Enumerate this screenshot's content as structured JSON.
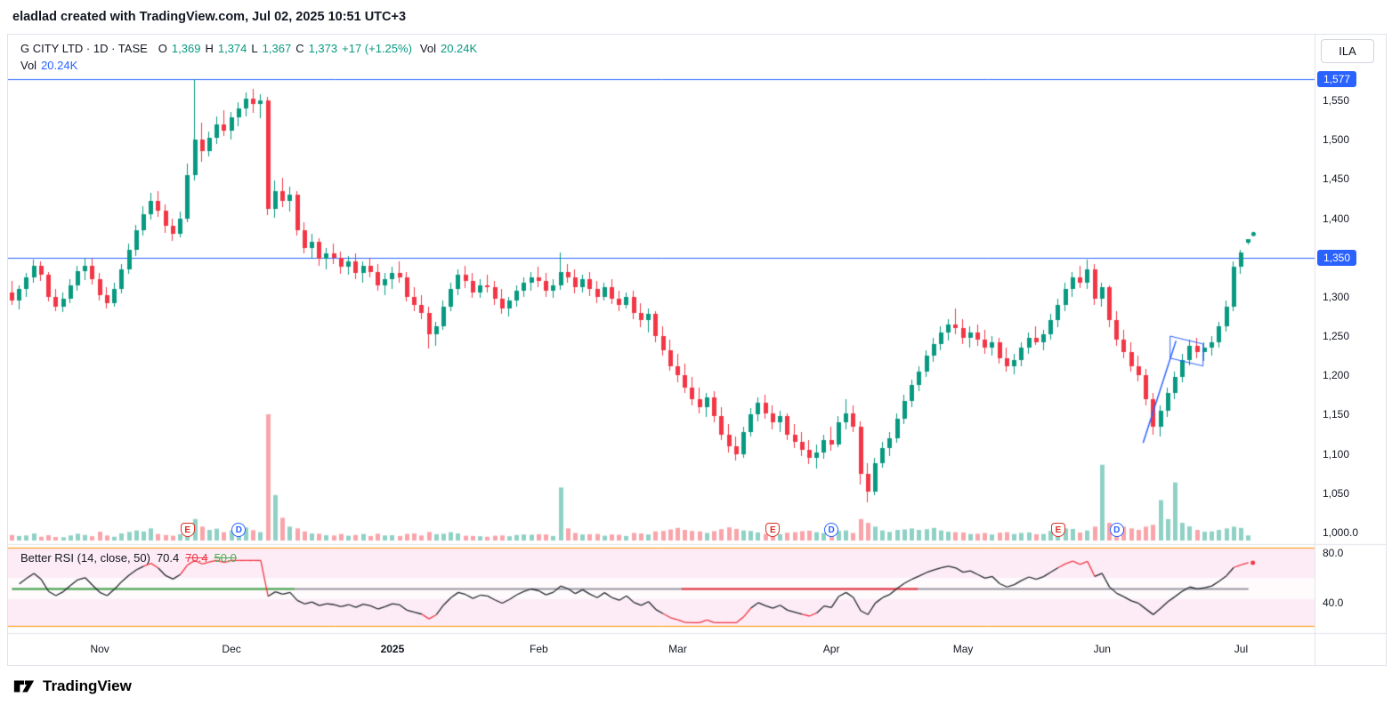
{
  "topbar": {
    "attribution": "eladlad created with TradingView.com, Jul 02, 2025 10:51 UTC+3"
  },
  "header": {
    "symbol_line": "G CITY LTD · 1D · TASE",
    "o_label": "O",
    "o": "1,369",
    "h_label": "H",
    "h": "1,374",
    "l_label": "L",
    "l": "1,367",
    "c_label": "C",
    "c": "1,373",
    "change": "+17 (+1.25%)",
    "vol_label": "Vol",
    "vol": "20.24K",
    "vol_row_label": "Vol",
    "vol_row_value": "20.24K"
  },
  "price_axis": {
    "unit_button": "ILA",
    "ticks": [
      {
        "label": "1,550",
        "p": 1550
      },
      {
        "label": "1,500",
        "p": 1500
      },
      {
        "label": "1,450",
        "p": 1450
      },
      {
        "label": "1,400",
        "p": 1400
      },
      {
        "label": "1,300",
        "p": 1300
      },
      {
        "label": "1,250",
        "p": 1250
      },
      {
        "label": "1,200",
        "p": 1200
      },
      {
        "label": "1,150",
        "p": 1150
      },
      {
        "label": "1,100",
        "p": 1100
      },
      {
        "label": "1,050",
        "p": 1050
      },
      {
        "label": "1,000.0",
        "p": 1000
      }
    ],
    "badges": [
      {
        "label": "1,577",
        "p": 1577
      },
      {
        "label": "1,350",
        "p": 1350
      }
    ]
  },
  "rsi_panel": {
    "legend": "Better RSI (14, close, 50)",
    "values": [
      {
        "text": "70.4",
        "color": "#131722",
        "strike": false
      },
      {
        "text": "70.4",
        "color": "#f23645",
        "strike": true
      },
      {
        "text": "50.0",
        "color": "#4caf50",
        "strike": true
      }
    ],
    "axis": [
      {
        "label": "80.0",
        "r": 80
      },
      {
        "label": "40.0",
        "r": 40
      }
    ]
  },
  "time_axis": [
    {
      "label": "Nov",
      "i": 12
    },
    {
      "label": "Dec",
      "i": 30
    },
    {
      "label": "2025",
      "i": 52,
      "bold": true
    },
    {
      "label": "Feb",
      "i": 72
    },
    {
      "label": "Mar",
      "i": 91
    },
    {
      "label": "Apr",
      "i": 112
    },
    {
      "label": "May",
      "i": 130
    },
    {
      "label": "Jun",
      "i": 149
    },
    {
      "label": "Jul",
      "i": 168
    }
  ],
  "event_badges": [
    {
      "type": "E",
      "i": 24
    },
    {
      "type": "D",
      "i": 31
    },
    {
      "type": "E",
      "i": 104
    },
    {
      "type": "D",
      "i": 112
    },
    {
      "type": "E",
      "i": 143
    },
    {
      "type": "D",
      "i": 151
    }
  ],
  "footer": {
    "brand": "TradingView"
  },
  "colors": {
    "up": "#089981",
    "down": "#f23645",
    "line_blue": "#2962ff",
    "rsi_red": "#f23645",
    "rsi_green": "#4caf50",
    "neutral_gray": "#9598a1",
    "orange": "#ff9100",
    "panel_pink": "#fdecf6"
  },
  "chart_data": {
    "type": "candlestick",
    "title": "G CITY LTD · 1D · TASE",
    "symbol": "G CITY LTD",
    "exchange": "TASE",
    "interval": "1D",
    "last_bar": {
      "open": 1369,
      "high": 1374,
      "low": 1367,
      "close": 1373,
      "change": 17,
      "change_pct": 1.25,
      "volume_k": 20.24
    },
    "visible_price_range": [
      1000,
      1590
    ],
    "price_lines": [
      1577,
      1350
    ],
    "indicator": "Better RSI (14, close, 50)",
    "rsi_legend_values": [
      70.4,
      70.4,
      50.0
    ],
    "volume_unit": "K",
    "candles": [
      [
        1305,
        1320,
        1290,
        1295,
        22
      ],
      [
        1295,
        1315,
        1285,
        1310,
        18
      ],
      [
        1310,
        1330,
        1300,
        1325,
        20
      ],
      [
        1325,
        1347,
        1318,
        1340,
        28
      ],
      [
        1340,
        1345,
        1320,
        1328,
        15
      ],
      [
        1328,
        1332,
        1295,
        1300,
        21
      ],
      [
        1300,
        1310,
        1282,
        1288,
        14
      ],
      [
        1288,
        1305,
        1280,
        1298,
        13
      ],
      [
        1298,
        1322,
        1292,
        1315,
        20
      ],
      [
        1315,
        1340,
        1308,
        1333,
        27
      ],
      [
        1333,
        1350,
        1322,
        1340,
        22
      ],
      [
        1340,
        1348,
        1315,
        1322,
        17
      ],
      [
        1322,
        1330,
        1295,
        1302,
        35
      ],
      [
        1302,
        1312,
        1285,
        1292,
        20
      ],
      [
        1292,
        1318,
        1288,
        1310,
        15
      ],
      [
        1310,
        1342,
        1305,
        1335,
        28
      ],
      [
        1335,
        1368,
        1330,
        1360,
        34
      ],
      [
        1360,
        1392,
        1352,
        1385,
        40
      ],
      [
        1385,
        1415,
        1378,
        1405,
        36
      ],
      [
        1405,
        1432,
        1398,
        1422,
        48
      ],
      [
        1422,
        1435,
        1402,
        1410,
        26
      ],
      [
        1410,
        1418,
        1382,
        1390,
        22
      ],
      [
        1390,
        1400,
        1372,
        1380,
        19
      ],
      [
        1380,
        1408,
        1375,
        1400,
        25
      ],
      [
        1400,
        1470,
        1395,
        1455,
        62
      ],
      [
        1455,
        1577,
        1448,
        1500,
        85
      ],
      [
        1500,
        1522,
        1472,
        1485,
        55
      ],
      [
        1485,
        1510,
        1478,
        1502,
        42
      ],
      [
        1502,
        1530,
        1495,
        1520,
        47
      ],
      [
        1520,
        1538,
        1505,
        1512,
        33
      ],
      [
        1512,
        1535,
        1500,
        1528,
        40
      ],
      [
        1528,
        1548,
        1518,
        1540,
        46
      ],
      [
        1540,
        1560,
        1530,
        1552,
        52
      ],
      [
        1552,
        1565,
        1535,
        1545,
        41
      ],
      [
        1545,
        1558,
        1528,
        1550,
        33
      ],
      [
        1550,
        1555,
        1405,
        1412,
        500
      ],
      [
        1412,
        1448,
        1400,
        1435,
        180
      ],
      [
        1435,
        1452,
        1415,
        1422,
        90
      ],
      [
        1422,
        1440,
        1408,
        1430,
        55
      ],
      [
        1430,
        1435,
        1378,
        1385,
        48
      ],
      [
        1385,
        1395,
        1355,
        1362,
        36
      ],
      [
        1362,
        1380,
        1348,
        1370,
        28
      ],
      [
        1370,
        1375,
        1340,
        1348,
        27
      ],
      [
        1348,
        1362,
        1335,
        1355,
        21
      ],
      [
        1355,
        1368,
        1342,
        1350,
        20
      ],
      [
        1350,
        1358,
        1330,
        1338,
        26
      ],
      [
        1338,
        1352,
        1328,
        1345,
        19
      ],
      [
        1345,
        1355,
        1322,
        1330,
        22
      ],
      [
        1330,
        1345,
        1318,
        1340,
        26
      ],
      [
        1340,
        1350,
        1325,
        1332,
        18
      ],
      [
        1332,
        1342,
        1308,
        1315,
        27
      ],
      [
        1315,
        1330,
        1302,
        1322,
        20
      ],
      [
        1322,
        1338,
        1310,
        1330,
        21
      ],
      [
        1330,
        1345,
        1318,
        1325,
        18
      ],
      [
        1325,
        1332,
        1295,
        1300,
        26
      ],
      [
        1300,
        1312,
        1282,
        1290,
        28
      ],
      [
        1290,
        1302,
        1272,
        1280,
        20
      ],
      [
        1280,
        1288,
        1235,
        1252,
        34
      ],
      [
        1252,
        1268,
        1238,
        1262,
        25
      ],
      [
        1262,
        1295,
        1258,
        1288,
        27
      ],
      [
        1288,
        1318,
        1282,
        1310,
        33
      ],
      [
        1310,
        1335,
        1302,
        1328,
        28
      ],
      [
        1328,
        1340,
        1312,
        1320,
        19
      ],
      [
        1320,
        1330,
        1298,
        1305,
        18
      ],
      [
        1305,
        1322,
        1298,
        1315,
        17
      ],
      [
        1315,
        1328,
        1305,
        1312,
        15
      ],
      [
        1312,
        1320,
        1290,
        1298,
        19
      ],
      [
        1298,
        1310,
        1278,
        1285,
        20
      ],
      [
        1285,
        1300,
        1275,
        1295,
        17
      ],
      [
        1295,
        1315,
        1288,
        1308,
        22
      ],
      [
        1308,
        1325,
        1300,
        1318,
        24
      ],
      [
        1318,
        1332,
        1308,
        1325,
        23
      ],
      [
        1325,
        1338,
        1312,
        1320,
        25
      ],
      [
        1320,
        1330,
        1300,
        1308,
        24
      ],
      [
        1308,
        1322,
        1298,
        1315,
        18
      ],
      [
        1315,
        1357,
        1310,
        1332,
        210
      ],
      [
        1332,
        1342,
        1318,
        1325,
        48
      ],
      [
        1325,
        1335,
        1305,
        1312,
        30
      ],
      [
        1312,
        1328,
        1305,
        1322,
        24
      ],
      [
        1322,
        1332,
        1302,
        1310,
        25
      ],
      [
        1310,
        1320,
        1292,
        1300,
        26
      ],
      [
        1300,
        1318,
        1295,
        1312,
        19
      ],
      [
        1312,
        1322,
        1290,
        1298,
        24
      ],
      [
        1298,
        1308,
        1282,
        1290,
        23
      ],
      [
        1290,
        1305,
        1285,
        1300,
        18
      ],
      [
        1300,
        1308,
        1272,
        1280,
        30
      ],
      [
        1280,
        1292,
        1262,
        1270,
        28
      ],
      [
        1270,
        1285,
        1255,
        1278,
        24
      ],
      [
        1278,
        1282,
        1242,
        1250,
        36
      ],
      [
        1250,
        1262,
        1225,
        1232,
        38
      ],
      [
        1232,
        1245,
        1205,
        1212,
        44
      ],
      [
        1212,
        1228,
        1192,
        1200,
        50
      ],
      [
        1200,
        1215,
        1178,
        1185,
        42
      ],
      [
        1185,
        1198,
        1162,
        1170,
        38
      ],
      [
        1170,
        1185,
        1152,
        1160,
        36
      ],
      [
        1160,
        1178,
        1148,
        1172,
        30
      ],
      [
        1172,
        1180,
        1140,
        1148,
        37
      ],
      [
        1148,
        1160,
        1118,
        1125,
        45
      ],
      [
        1125,
        1138,
        1102,
        1110,
        52
      ],
      [
        1110,
        1122,
        1092,
        1100,
        46
      ],
      [
        1100,
        1135,
        1095,
        1128,
        40
      ],
      [
        1128,
        1158,
        1122,
        1150,
        38
      ],
      [
        1150,
        1172,
        1142,
        1165,
        32
      ],
      [
        1165,
        1175,
        1145,
        1152,
        26
      ],
      [
        1152,
        1162,
        1132,
        1140,
        30
      ],
      [
        1140,
        1155,
        1128,
        1148,
        25
      ],
      [
        1148,
        1152,
        1118,
        1125,
        31
      ],
      [
        1125,
        1138,
        1108,
        1115,
        33
      ],
      [
        1115,
        1128,
        1098,
        1105,
        37
      ],
      [
        1105,
        1118,
        1088,
        1095,
        39
      ],
      [
        1095,
        1112,
        1082,
        1102,
        33
      ],
      [
        1102,
        1125,
        1095,
        1118,
        30
      ],
      [
        1118,
        1135,
        1105,
        1112,
        31
      ],
      [
        1112,
        1148,
        1108,
        1140,
        38
      ],
      [
        1140,
        1170,
        1132,
        1152,
        40
      ],
      [
        1152,
        1162,
        1128,
        1135,
        30
      ],
      [
        1135,
        1142,
        1062,
        1075,
        85
      ],
      [
        1075,
        1088,
        1038,
        1052,
        70
      ],
      [
        1052,
        1095,
        1048,
        1088,
        55
      ],
      [
        1088,
        1115,
        1082,
        1108,
        40
      ],
      [
        1108,
        1128,
        1098,
        1120,
        34
      ],
      [
        1120,
        1152,
        1115,
        1145,
        42
      ],
      [
        1145,
        1175,
        1138,
        1168,
        44
      ],
      [
        1168,
        1195,
        1160,
        1188,
        48
      ],
      [
        1188,
        1212,
        1180,
        1205,
        42
      ],
      [
        1205,
        1232,
        1198,
        1225,
        45
      ],
      [
        1225,
        1248,
        1218,
        1240,
        50
      ],
      [
        1240,
        1262,
        1232,
        1255,
        40
      ],
      [
        1255,
        1272,
        1245,
        1265,
        35
      ],
      [
        1265,
        1285,
        1252,
        1260,
        33
      ],
      [
        1260,
        1272,
        1240,
        1248,
        32
      ],
      [
        1248,
        1262,
        1235,
        1255,
        26
      ],
      [
        1255,
        1265,
        1238,
        1245,
        27
      ],
      [
        1245,
        1258,
        1228,
        1235,
        30
      ],
      [
        1235,
        1250,
        1225,
        1242,
        24
      ],
      [
        1242,
        1248,
        1215,
        1222,
        31
      ],
      [
        1222,
        1235,
        1205,
        1212,
        33
      ],
      [
        1212,
        1228,
        1202,
        1220,
        26
      ],
      [
        1220,
        1242,
        1212,
        1235,
        30
      ],
      [
        1235,
        1255,
        1228,
        1248,
        32
      ],
      [
        1248,
        1262,
        1238,
        1242,
        25
      ],
      [
        1242,
        1258,
        1232,
        1252,
        26
      ],
      [
        1252,
        1278,
        1245,
        1270,
        38
      ],
      [
        1270,
        1298,
        1262,
        1290,
        42
      ],
      [
        1290,
        1318,
        1282,
        1310,
        48
      ],
      [
        1310,
        1332,
        1300,
        1325,
        46
      ],
      [
        1325,
        1340,
        1312,
        1318,
        32
      ],
      [
        1318,
        1347,
        1310,
        1335,
        40
      ],
      [
        1335,
        1342,
        1290,
        1298,
        55
      ],
      [
        1298,
        1318,
        1288,
        1312,
        300
      ],
      [
        1312,
        1315,
        1262,
        1270,
        70
      ],
      [
        1270,
        1282,
        1238,
        1245,
        62
      ],
      [
        1245,
        1258,
        1222,
        1230,
        55
      ],
      [
        1230,
        1242,
        1205,
        1212,
        48
      ],
      [
        1212,
        1225,
        1192,
        1200,
        42
      ],
      [
        1200,
        1208,
        1162,
        1170,
        55
      ],
      [
        1170,
        1178,
        1125,
        1135,
        62
      ],
      [
        1135,
        1162,
        1122,
        1155,
        160
      ],
      [
        1155,
        1185,
        1148,
        1178,
        85
      ],
      [
        1178,
        1205,
        1170,
        1198,
        230
      ],
      [
        1198,
        1228,
        1192,
        1220,
        70
      ],
      [
        1220,
        1245,
        1212,
        1238,
        56
      ],
      [
        1238,
        1248,
        1222,
        1230,
        42
      ],
      [
        1230,
        1242,
        1218,
        1235,
        35
      ],
      [
        1235,
        1250,
        1225,
        1242,
        36
      ],
      [
        1242,
        1268,
        1235,
        1262,
        42
      ],
      [
        1262,
        1295,
        1255,
        1288,
        48
      ],
      [
        1288,
        1345,
        1282,
        1338,
        55
      ],
      [
        1338,
        1360,
        1330,
        1356,
        50
      ],
      [
        1369,
        1374,
        1367,
        1373,
        20.24
      ]
    ],
    "drawings": {
      "trendline": {
        "i1": 154.6,
        "p1": 1114,
        "i2": 159.1,
        "p2": 1244
      },
      "channel": {
        "i1": 158.3,
        "i2": 162.8,
        "p_top1": 1250,
        "p_top2": 1240,
        "p_bot1": 1222,
        "p_bot2": 1212
      },
      "price_dot": {
        "i": 169.7,
        "p": 1380
      },
      "rsi_mid_green_to_i": 38.6,
      "rsi_mid_red_from_i": 91.5,
      "rsi_mid_red_to_i": 123.8
    }
  }
}
